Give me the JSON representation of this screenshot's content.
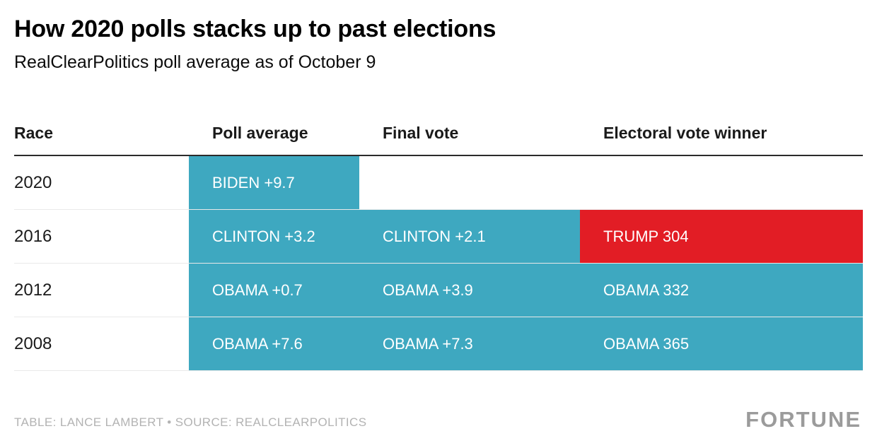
{
  "header": {
    "title": "How 2020 polls stacks up to past elections",
    "subtitle": "RealClearPolitics poll average as of October 9"
  },
  "chart_data": {
    "type": "table",
    "title": "How 2020 polls stacks up to past elections",
    "subtitle": "RealClearPolitics poll average as of October 9",
    "columns": [
      "Race",
      "Poll average",
      "Final vote",
      "Electoral vote winner"
    ],
    "rows": [
      [
        "2020",
        "BIDEN +9.7",
        "",
        ""
      ],
      [
        "2016",
        "CLINTON +3.2",
        "CLINTON +2.1",
        "TRUMP 304"
      ],
      [
        "2012",
        "OBAMA +0.7",
        "OBAMA +3.9",
        "OBAMA 332"
      ],
      [
        "2008",
        "OBAMA +7.6",
        "OBAMA +7.3",
        "OBAMA 365"
      ]
    ],
    "cell_colors": [
      [
        "none",
        "teal",
        "none",
        "none"
      ],
      [
        "none",
        "teal",
        "teal",
        "red"
      ],
      [
        "none",
        "teal",
        "teal",
        "teal"
      ],
      [
        "none",
        "teal",
        "teal",
        "teal"
      ]
    ],
    "legend_position": "none",
    "grid": "row-separators"
  },
  "colors": {
    "teal": "#3EA8C0",
    "red": "#E21D25",
    "cell_text": "#FFFFFF"
  },
  "footer": {
    "credit": "TABLE: LANCE LAMBERT • SOURCE: REALCLEARPOLITICS",
    "brand": "FORTUNE"
  }
}
